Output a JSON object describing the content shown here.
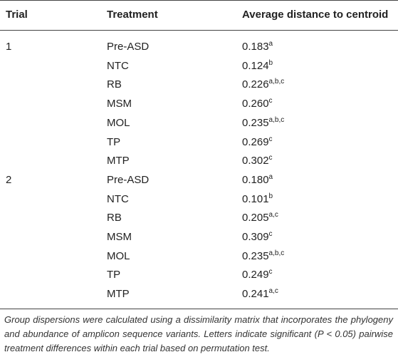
{
  "headers": {
    "trial": "Trial",
    "treatment": "Treatment",
    "distance": "Average distance to centroid"
  },
  "rows": [
    {
      "trial": "1",
      "treatment": "Pre-ASD",
      "value": "0.183",
      "sig": "a"
    },
    {
      "trial": "",
      "treatment": "NTC",
      "value": "0.124",
      "sig": "b"
    },
    {
      "trial": "",
      "treatment": "RB",
      "value": "0.226",
      "sig": "a,b,c"
    },
    {
      "trial": "",
      "treatment": "MSM",
      "value": "0.260",
      "sig": "c"
    },
    {
      "trial": "",
      "treatment": "MOL",
      "value": "0.235",
      "sig": "a,b,c"
    },
    {
      "trial": "",
      "treatment": "TP",
      "value": "0.269",
      "sig": "c"
    },
    {
      "trial": "",
      "treatment": "MTP",
      "value": "0.302",
      "sig": "c"
    },
    {
      "trial": "2",
      "treatment": "Pre-ASD",
      "value": "0.180",
      "sig": "a"
    },
    {
      "trial": "",
      "treatment": "NTC",
      "value": "0.101",
      "sig": "b"
    },
    {
      "trial": "",
      "treatment": "RB",
      "value": "0.205",
      "sig": "a,c"
    },
    {
      "trial": "",
      "treatment": "MSM",
      "value": "0.309",
      "sig": "c"
    },
    {
      "trial": "",
      "treatment": "MOL",
      "value": "0.235",
      "sig": "a,b,c"
    },
    {
      "trial": "",
      "treatment": "TP",
      "value": "0.249",
      "sig": "c"
    },
    {
      "trial": "",
      "treatment": "MTP",
      "value": "0.241",
      "sig": "a,c"
    }
  ],
  "footnote": "Group dispersions were calculated using a dissimilarity matrix that incorporates the phylogeny and abundance of amplicon sequence variants. Letters indicate significant (P < 0.05) pairwise treatment differences within each trial based on permutation test."
}
